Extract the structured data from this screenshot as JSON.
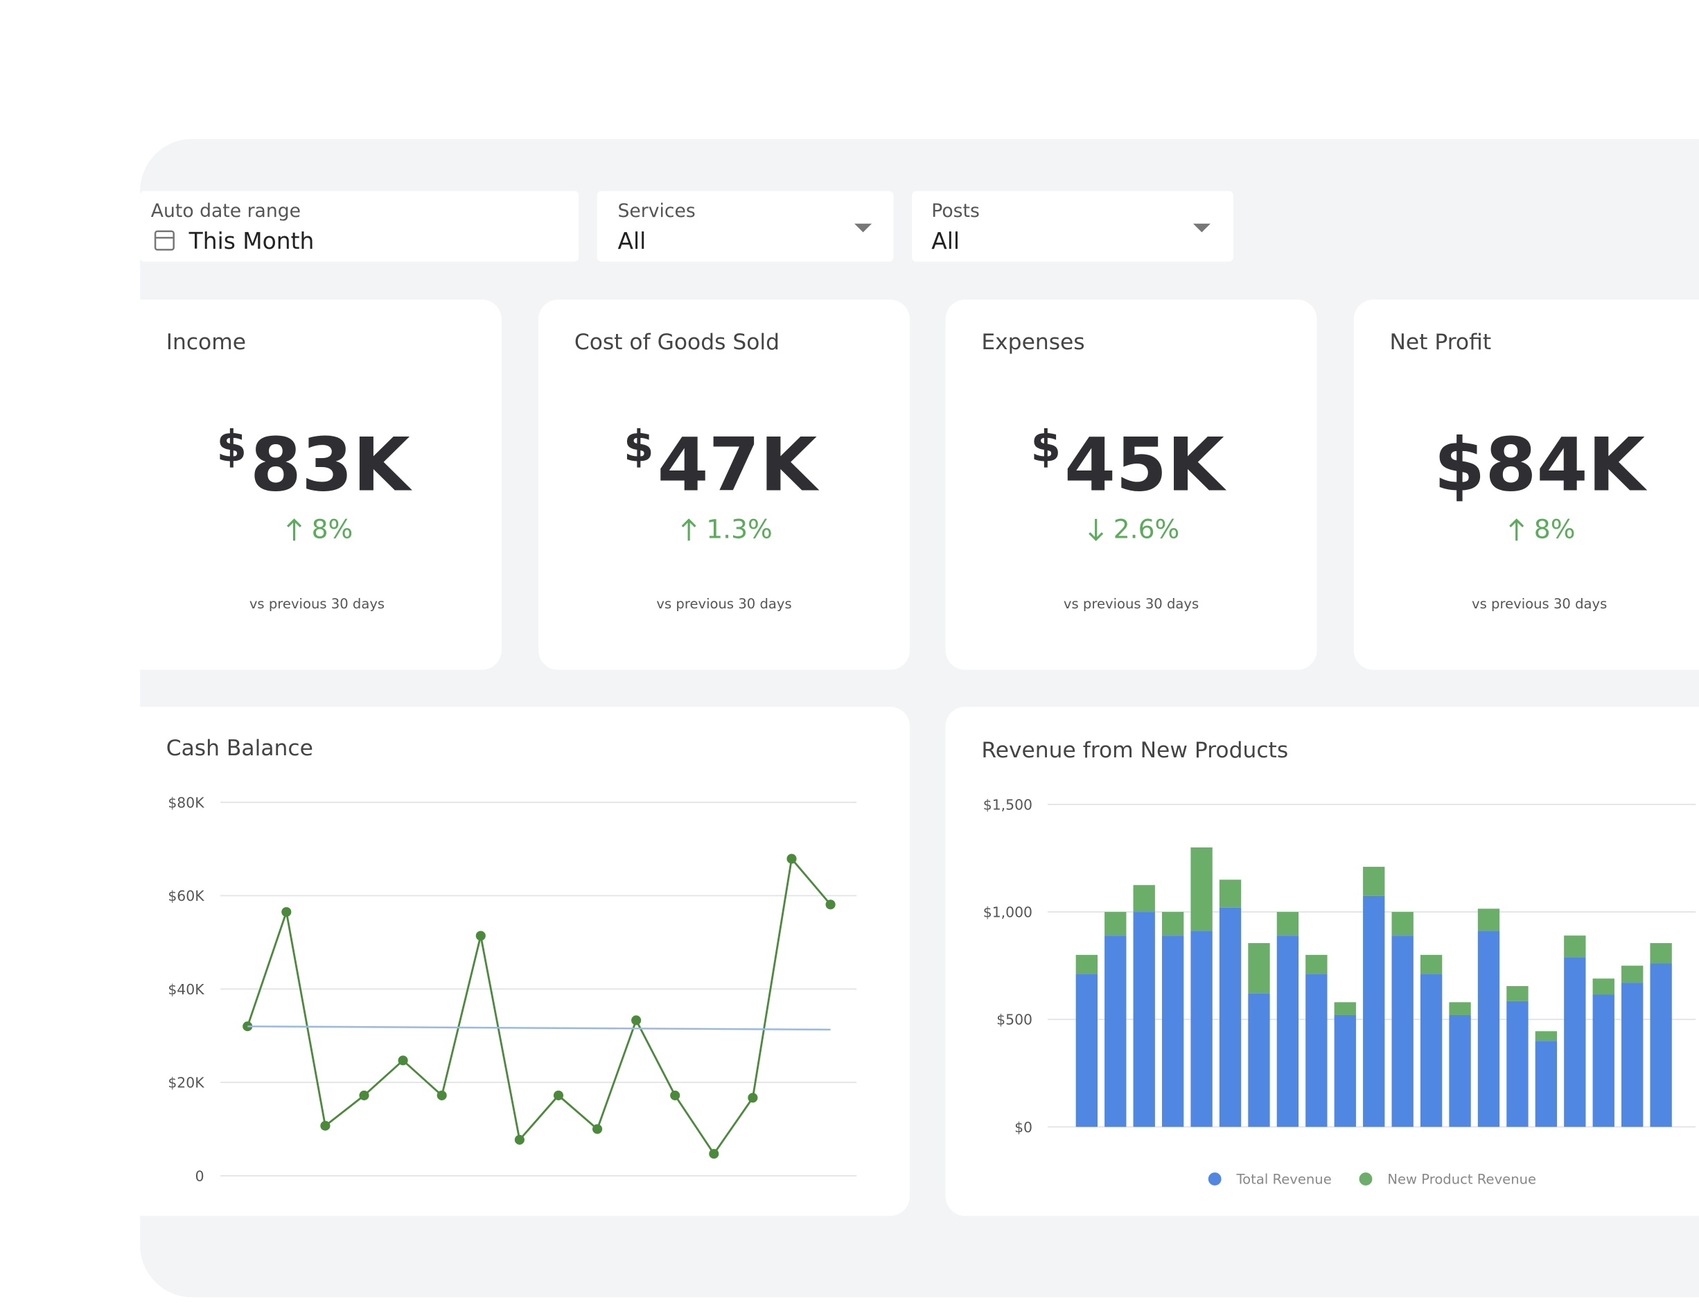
{
  "filters": [
    {
      "label": "Auto date range",
      "value": "This Month"
    },
    {
      "label": "Services",
      "value": "All"
    },
    {
      "label": "Posts",
      "value": "All"
    }
  ],
  "kpis": [
    {
      "title": "Income",
      "prefix": "$",
      "value": "83K",
      "change": "8%",
      "direction": "up",
      "note": "vs previous 30 days"
    },
    {
      "title": "Cost of Goods Sold",
      "prefix": "$",
      "value": "47K",
      "change": "1.3%",
      "direction": "up",
      "note": "vs previous 30 days"
    },
    {
      "title": "Expenses",
      "prefix": "$",
      "value": "45K",
      "change": "2.6%",
      "direction": "down",
      "note": "vs previous 30 days"
    },
    {
      "title": "Net Profit",
      "value": "$84K",
      "change": "8%",
      "direction": "up",
      "note": "vs previous 30 days"
    }
  ],
  "chart_data": [
    {
      "type": "line",
      "title": "Cash Balance",
      "categories": [
        null,
        null,
        null,
        null,
        null,
        null,
        null,
        null,
        null,
        null,
        null,
        null,
        null,
        null,
        null,
        null
      ],
      "series": [
        {
          "color": "#4a8a3a",
          "values": [
            32,
            56.5,
            10.7,
            17.2,
            24.7,
            17.2,
            51.4,
            7.7,
            17.2,
            10,
            33.3,
            17.2,
            4.7,
            16.7,
            67.9,
            58.1
          ],
          "markers": true
        },
        {
          "color": "#9bb8e3",
          "values": [
            32,
            null,
            null,
            null,
            null,
            null,
            null,
            null,
            null,
            null,
            null,
            null,
            null,
            null,
            null,
            31.3
          ],
          "markers": false,
          "connect": true
        }
      ],
      "ylim": [
        0,
        80
      ],
      "yticks": [
        {
          "value": 0,
          "label": "0"
        },
        {
          "value": 20,
          "label": "$20K"
        },
        {
          "value": 40,
          "label": "$40K"
        },
        {
          "value": 60,
          "label": "$60K"
        },
        {
          "value": 80,
          "label": "$80K"
        }
      ],
      "grid": true
    },
    {
      "type": "stacked_bar",
      "title": "Revenue from New Products",
      "categories": [
        null,
        null,
        null,
        null,
        null,
        null,
        null,
        null,
        null,
        null,
        null,
        null,
        null,
        null,
        null,
        null,
        null,
        null,
        null,
        null,
        null
      ],
      "series": [
        {
          "name": "Total Revenue",
          "color": "#4f87e3",
          "values": [
            710,
            890,
            1000,
            890,
            910,
            1020,
            620,
            890,
            710,
            520,
            1075,
            890,
            710,
            520,
            910,
            585,
            400,
            790,
            615,
            670,
            760
          ]
        },
        {
          "name": "New Product Revenue",
          "color": "#6aae6a",
          "values": [
            90,
            110,
            125,
            110,
            390,
            130,
            235,
            110,
            90,
            60,
            135,
            110,
            90,
            60,
            105,
            70,
            45,
            100,
            75,
            80,
            95
          ]
        }
      ],
      "ylim": [
        0,
        1500
      ],
      "yticks": [
        {
          "value": 0,
          "label": "$0"
        },
        {
          "value": 500,
          "label": "$500"
        },
        {
          "value": 1000,
          "label": "$1,000"
        },
        {
          "value": 1500,
          "label": "$1,500"
        }
      ],
      "grid": true,
      "legend": "bottom"
    }
  ]
}
